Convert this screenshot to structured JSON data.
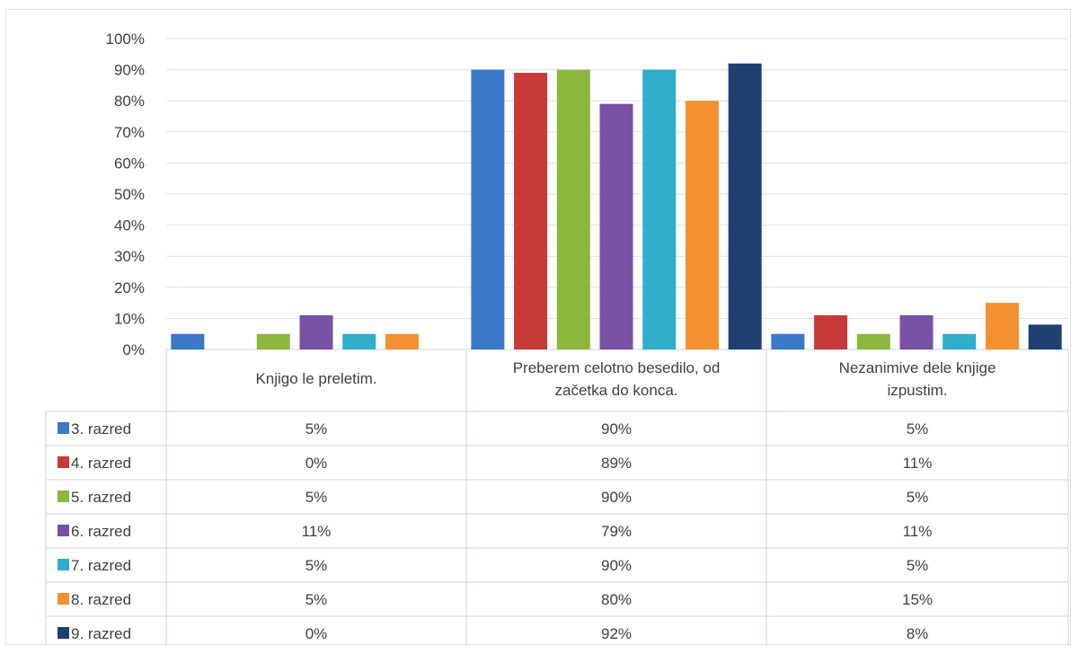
{
  "chart_data": {
    "type": "bar",
    "categories": [
      [
        "Knjigo le preletim."
      ],
      [
        "Preberem celotno besedilo, od",
        "začetka do konca."
      ],
      [
        "Nezanimive dele knjige",
        "izpustim."
      ]
    ],
    "series": [
      {
        "name": "3. razred",
        "color": "#3a78c9",
        "values": [
          5,
          90,
          5
        ],
        "labels": [
          "5%",
          "90%",
          "5%"
        ]
      },
      {
        "name": "4. razred",
        "color": "#c83a37",
        "values": [
          0,
          89,
          11
        ],
        "labels": [
          "0%",
          "89%",
          "11%"
        ]
      },
      {
        "name": "5. razred",
        "color": "#8cb83e",
        "values": [
          5,
          90,
          5
        ],
        "labels": [
          "5%",
          "90%",
          "5%"
        ]
      },
      {
        "name": "6. razred",
        "color": "#7850a4",
        "values": [
          11,
          79,
          11
        ],
        "labels": [
          "11%",
          "79%",
          "11%"
        ]
      },
      {
        "name": "7. razred",
        "color": "#2eaecb",
        "values": [
          5,
          90,
          5
        ],
        "labels": [
          "5%",
          "90%",
          "5%"
        ]
      },
      {
        "name": "8. razred",
        "color": "#f39130",
        "values": [
          5,
          80,
          15
        ],
        "labels": [
          "5%",
          "80%",
          "15%"
        ]
      },
      {
        "name": "9. razred",
        "color": "#1f3f73",
        "values": [
          0,
          92,
          8
        ],
        "labels": [
          "0%",
          "92%",
          "8%"
        ]
      }
    ],
    "yticks": [
      "0%",
      "10%",
      "20%",
      "30%",
      "40%",
      "50%",
      "60%",
      "70%",
      "80%",
      "90%",
      "100%"
    ],
    "ylim": [
      0,
      100
    ],
    "grid": true,
    "legend": "data-table"
  }
}
